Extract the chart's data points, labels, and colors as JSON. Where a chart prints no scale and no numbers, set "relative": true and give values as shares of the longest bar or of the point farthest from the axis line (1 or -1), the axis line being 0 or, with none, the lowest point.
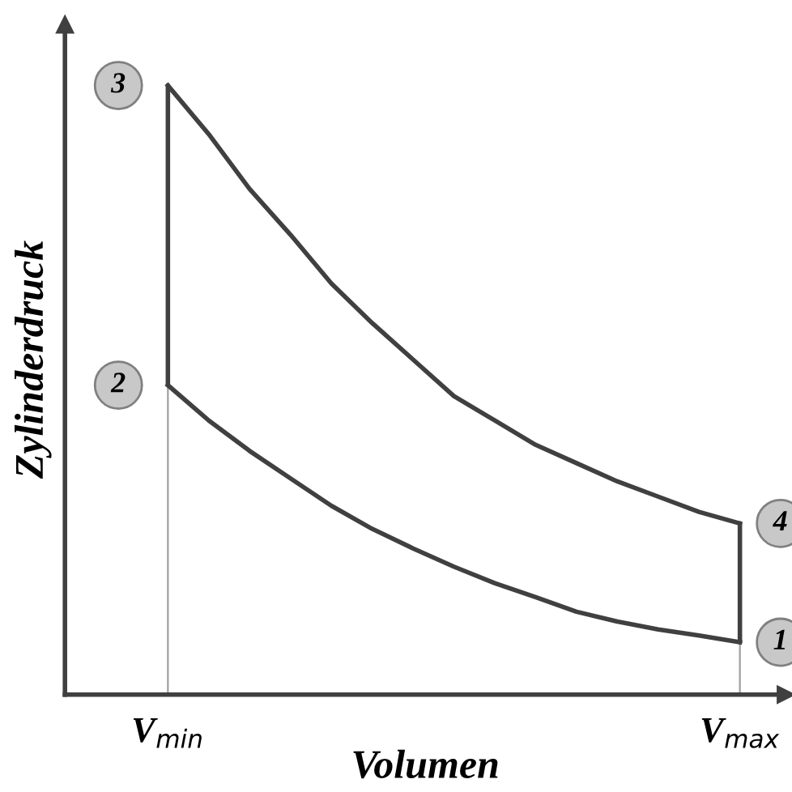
{
  "chart_data": {
    "type": "line",
    "relative": true,
    "xlabel": "Volumen",
    "ylabel": "Zylinderdruck",
    "categories": [
      "V$_{min}$",
      null,
      null,
      null,
      null,
      null,
      null,
      null,
      null,
      null,
      null,
      null,
      null,
      null,
      "V$_{max}$"
    ],
    "tick_labels": "x",
    "grid": false,
    "legend": false,
    "marker": "none",
    "line_style": "solid",
    "series": [
      {
        "color": "#404040",
        "values": [
          0.508,
          0.45,
          0.4,
          0.355,
          0.31,
          0.272,
          0.24,
          0.21,
          0.183,
          0.16,
          0.136,
          0.12,
          0.107,
          0.097,
          0.086
        ]
      },
      {
        "color": "#404040",
        "values": [
          1,
          0.92,
          0.83,
          0.755,
          0.675,
          0.61,
          0.55,
          0.49,
          0.45,
          0.41,
          0.38,
          0.35,
          0.325,
          0.3,
          0.281
        ]
      },
      {
        "color": "#404040",
        "x": [
          "V$_{min}$",
          "V$_{min}$"
        ],
        "values": [
          0.508,
          1
        ]
      },
      {
        "color": "#404040",
        "x": [
          "V$_{max}$",
          "V$_{max}$"
        ],
        "values": [
          0.086,
          0.281
        ]
      }
    ],
    "ref_lines": [
      {
        "axis": "x",
        "value": "V$_{min}$",
        "color": "#a0a0a0"
      },
      {
        "axis": "x",
        "value": "V$_{max}$",
        "color": "#a0a0a0"
      }
    ],
    "annotations": [
      {
        "text": "1",
        "x": "V$_{max}$",
        "y": 0.086
      },
      {
        "text": "2",
        "x": "V$_{min}$",
        "y": 0.508
      },
      {
        "text": "3",
        "x": "V$_{min}$",
        "y": 1
      },
      {
        "text": "4",
        "x": "V$_{max}$",
        "y": 0.281
      }
    ]
  }
}
